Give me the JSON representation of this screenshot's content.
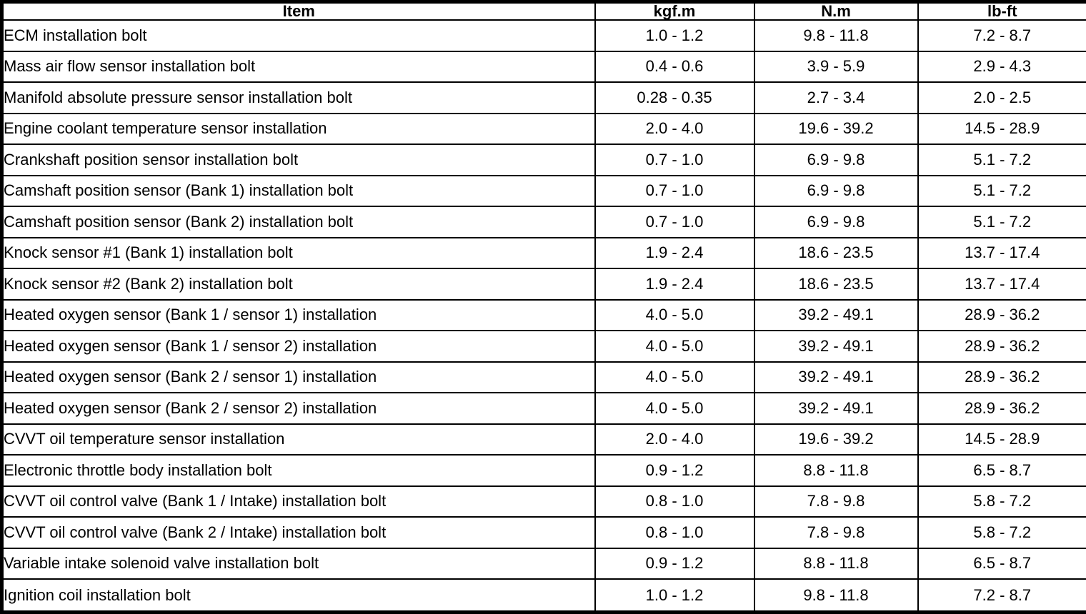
{
  "table": {
    "columns": [
      {
        "key": "item",
        "label": "Item"
      },
      {
        "key": "kgfm",
        "label": "kgf.m"
      },
      {
        "key": "nm",
        "label": "N.m"
      },
      {
        "key": "lbft",
        "label": "lb-ft"
      }
    ],
    "rows": [
      {
        "item": "ECM installation bolt",
        "kgfm": "1.0 - 1.2",
        "nm": "9.8 - 11.8",
        "lbft": "7.2 - 8.7"
      },
      {
        "item": "Mass air flow sensor installation bolt",
        "kgfm": "0.4 - 0.6",
        "nm": "3.9 - 5.9",
        "lbft": "2.9 - 4.3"
      },
      {
        "item": "Manifold absolute pressure sensor installation bolt",
        "kgfm": "0.28 - 0.35",
        "nm": "2.7 - 3.4",
        "lbft": "2.0 - 2.5"
      },
      {
        "item": "Engine coolant temperature sensor installation",
        "kgfm": "2.0 - 4.0",
        "nm": "19.6 - 39.2",
        "lbft": "14.5 - 28.9"
      },
      {
        "item": "Crankshaft position sensor installation bolt",
        "kgfm": "0.7 - 1.0",
        "nm": "6.9 - 9.8",
        "lbft": "5.1 - 7.2"
      },
      {
        "item": "Camshaft position sensor (Bank 1) installation bolt",
        "kgfm": "0.7 - 1.0",
        "nm": "6.9 - 9.8",
        "lbft": "5.1 - 7.2"
      },
      {
        "item": "Camshaft position sensor (Bank 2) installation bolt",
        "kgfm": "0.7 - 1.0",
        "nm": "6.9 - 9.8",
        "lbft": "5.1 - 7.2"
      },
      {
        "item": "Knock sensor #1 (Bank 1) installation bolt",
        "kgfm": "1.9 - 2.4",
        "nm": "18.6 - 23.5",
        "lbft": "13.7 - 17.4"
      },
      {
        "item": "Knock sensor #2 (Bank 2) installation bolt",
        "kgfm": "1.9 - 2.4",
        "nm": "18.6 - 23.5",
        "lbft": "13.7 - 17.4"
      },
      {
        "item": "Heated oxygen sensor (Bank 1 / sensor 1) installation",
        "kgfm": "4.0 - 5.0",
        "nm": "39.2 - 49.1",
        "lbft": "28.9 - 36.2"
      },
      {
        "item": "Heated oxygen sensor (Bank 1 / sensor 2) installation",
        "kgfm": "4.0 - 5.0",
        "nm": "39.2 - 49.1",
        "lbft": "28.9 - 36.2"
      },
      {
        "item": "Heated oxygen sensor (Bank 2 / sensor 1) installation",
        "kgfm": "4.0 - 5.0",
        "nm": "39.2 - 49.1",
        "lbft": "28.9 - 36.2"
      },
      {
        "item": "Heated oxygen sensor (Bank 2 / sensor 2) installation",
        "kgfm": "4.0 - 5.0",
        "nm": "39.2 - 49.1",
        "lbft": "28.9 - 36.2"
      },
      {
        "item": "CVVT oil temperature sensor installation",
        "kgfm": "2.0 - 4.0",
        "nm": "19.6 - 39.2",
        "lbft": "14.5 - 28.9"
      },
      {
        "item": "Electronic throttle body installation bolt",
        "kgfm": "0.9 - 1.2",
        "nm": "8.8 - 11.8",
        "lbft": "6.5 - 8.7"
      },
      {
        "item": "CVVT oil control valve (Bank 1 / Intake) installation bolt",
        "kgfm": "0.8 - 1.0",
        "nm": "7.8 - 9.8",
        "lbft": "5.8 - 7.2"
      },
      {
        "item": "CVVT oil control valve (Bank 2 / Intake) installation bolt",
        "kgfm": "0.8 - 1.0",
        "nm": "7.8 - 9.8",
        "lbft": "5.8 - 7.2"
      },
      {
        "item": "Variable intake solenoid valve installation bolt",
        "kgfm": "0.9 - 1.2",
        "nm": "8.8 - 11.8",
        "lbft": "6.5 - 8.7"
      },
      {
        "item": "Ignition coil installation bolt",
        "kgfm": "1.0 - 1.2",
        "nm": "9.8 - 11.8",
        "lbft": "7.2 - 8.7"
      }
    ],
    "colors": {
      "border": "#000000",
      "background": "#ffffff",
      "text": "#000000"
    }
  }
}
